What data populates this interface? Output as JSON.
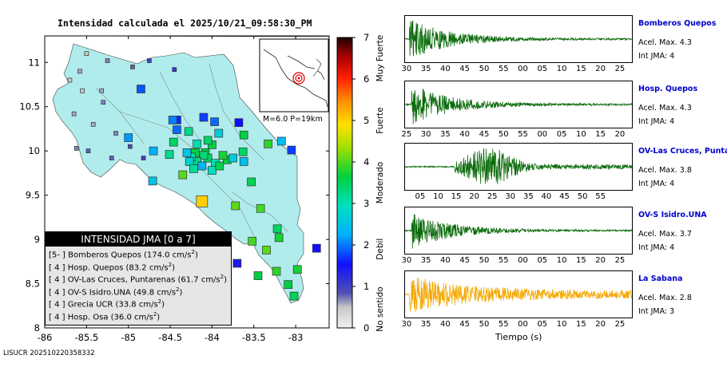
{
  "header": {
    "title": "Intensidad calculada el 2025/10/21_09:58:30_PM"
  },
  "footer": {
    "text": "LISUCR 202510220358332"
  },
  "map": {
    "x_ticks": [
      "-86",
      "-85.5",
      "-85",
      "-84.5",
      "-84",
      "-83.5",
      "-83"
    ],
    "y_ticks": [
      "11",
      "10.5",
      "10",
      "9.5",
      "9",
      "8.5",
      "8"
    ],
    "inset_label": "M=6.0 P=19km",
    "land_color": "#b0ecec",
    "sea_color": "#ffffff"
  },
  "colorbar": {
    "ticks": [
      "0",
      "1",
      "2",
      "3",
      "4",
      "5",
      "6",
      "7"
    ],
    "labels": [
      "No sentido",
      "Debil",
      "Moderado",
      "Fuerte",
      "Muy Fuerte"
    ]
  },
  "legend": {
    "title": "INTENSIDAD JMA [0 a 7]",
    "rows": [
      {
        "level": "[5- ]",
        "station": "Bomberos Quepos",
        "value": "(174.0 cm/s",
        "unit": "2",
        "close": ")"
      },
      {
        "level": "[ 4 ]",
        "station": "Hosp. Quepos",
        "value": "(83.2 cm/s",
        "unit": "2",
        "close": ")"
      },
      {
        "level": "[ 4 ]",
        "station": "OV-Las Cruces, Puntarenas",
        "value": "(61.7 cm/s",
        "unit": "2",
        "close": ")"
      },
      {
        "level": "[ 4 ]",
        "station": "OV-S Isidro.UNA",
        "value": "(49.8 cm/s",
        "unit": "2",
        "close": ")"
      },
      {
        "level": "[ 4 ]",
        "station": "Grecia UCR",
        "value": "(33.8 cm/s",
        "unit": "2",
        "close": ")"
      },
      {
        "level": "[ 4 ]",
        "station": "Hosp. Osa",
        "value": "(36.0 cm/s",
        "unit": "2",
        "close": ")"
      }
    ]
  },
  "traces": {
    "x_label": "Tiempo (s)",
    "stations": [
      {
        "name": "Bomberos Quepos",
        "acc": "Acel. Max. 4.3",
        "int": "Int JMA: 4",
        "color": "#0a6b0a",
        "ticks": [
          "30",
          "35",
          "40",
          "45",
          "50",
          "55",
          "00",
          "05",
          "10",
          "15",
          "20",
          "25"
        ],
        "onset": 0.02,
        "amp": 1.0
      },
      {
        "name": "Hosp. Quepos",
        "acc": "Acel. Max. 4.3",
        "int": "Int JMA: 4",
        "color": "#0a6b0a",
        "ticks": [
          "25",
          "30",
          "35",
          "40",
          "45",
          "50",
          "55",
          "00",
          "05",
          "10",
          "15",
          "20"
        ],
        "onset": 0.03,
        "amp": 1.0
      },
      {
        "name": "OV-Las Cruces, Puntar",
        "acc": "Acel. Max. 3.8",
        "int": "Int JMA: 4",
        "color": "#0a6b0a",
        "ticks": [
          "05",
          "10",
          "15",
          "20",
          "25",
          "30",
          "35",
          "40",
          "45",
          "50",
          "55"
        ],
        "onset": 0.22,
        "amp": 0.9
      },
      {
        "name": "OV-S Isidro.UNA",
        "acc": "Acel. Max. 3.7",
        "int": "Int JMA: 4",
        "color": "#0a6b0a",
        "ticks": [
          "30",
          "35",
          "40",
          "45",
          "50",
          "55",
          "00",
          "05",
          "10",
          "15",
          "20",
          "25"
        ],
        "onset": 0.03,
        "amp": 0.9
      },
      {
        "name": "La Sabana",
        "acc": "Acel. Max. 2.8",
        "int": "Int JMA: 3",
        "color": "#f5a800",
        "ticks": [
          "30",
          "35",
          "40",
          "45",
          "50",
          "55",
          "00",
          "05",
          "10",
          "15",
          "20",
          "25"
        ],
        "onset": 0.02,
        "amp": 0.95
      }
    ]
  },
  "chart_data": {
    "type": "scatter",
    "title": "Intensidad calculada el 2025/10/21_09:58:30_PM",
    "xlim": [
      -86,
      -82.6
    ],
    "ylim": [
      8,
      11.3
    ],
    "color_scale": {
      "min": 0,
      "max": 7,
      "labels": [
        "No sentido",
        "Debil",
        "Moderado",
        "Fuerte",
        "Muy Fuerte"
      ]
    },
    "stations": [
      {
        "lon": -84.12,
        "lat": 9.43,
        "intensity": 5.0
      },
      {
        "lon": -84.35,
        "lat": 9.73,
        "intensity": 4.0
      },
      {
        "lon": -83.72,
        "lat": 9.38,
        "intensity": 4.0
      },
      {
        "lon": -83.35,
        "lat": 8.88,
        "intensity": 4.0
      },
      {
        "lon": -84.08,
        "lat": 9.98,
        "intensity": 3.6
      },
      {
        "lon": -84.2,
        "lat": 9.98,
        "intensity": 3.6
      },
      {
        "lon": -84.05,
        "lat": 9.92,
        "intensity": 3.4
      },
      {
        "lon": -83.96,
        "lat": 9.86,
        "intensity": 3.0
      },
      {
        "lon": -84.0,
        "lat": 9.78,
        "intensity": 2.9
      },
      {
        "lon": -84.1,
        "lat": 9.95,
        "intensity": 3.3
      },
      {
        "lon": -84.18,
        "lat": 9.88,
        "intensity": 3.2
      },
      {
        "lon": -84.25,
        "lat": 9.93,
        "intensity": 3.0
      },
      {
        "lon": -84.3,
        "lat": 9.98,
        "intensity": 2.5
      },
      {
        "lon": -84.27,
        "lat": 9.88,
        "intensity": 2.7
      },
      {
        "lon": -84.12,
        "lat": 9.83,
        "intensity": 2.3
      },
      {
        "lon": -84.22,
        "lat": 9.8,
        "intensity": 3.1
      },
      {
        "lon": -83.91,
        "lat": 9.83,
        "intensity": 3.5
      },
      {
        "lon": -83.82,
        "lat": 9.9,
        "intensity": 3.6
      },
      {
        "lon": -83.75,
        "lat": 9.92,
        "intensity": 2.6
      },
      {
        "lon": -83.87,
        "lat": 9.95,
        "intensity": 3.7
      },
      {
        "lon": -84.0,
        "lat": 10.07,
        "intensity": 3.6
      },
      {
        "lon": -84.05,
        "lat": 10.12,
        "intensity": 3.4
      },
      {
        "lon": -84.18,
        "lat": 10.08,
        "intensity": 3.0
      },
      {
        "lon": -83.92,
        "lat": 10.2,
        "intensity": 2.6
      },
      {
        "lon": -84.28,
        "lat": 10.22,
        "intensity": 3.2
      },
      {
        "lon": -84.42,
        "lat": 10.35,
        "intensity": 1.6
      },
      {
        "lon": -84.42,
        "lat": 10.24,
        "intensity": 1.9
      },
      {
        "lon": -84.1,
        "lat": 10.38,
        "intensity": 1.7
      },
      {
        "lon": -83.97,
        "lat": 10.33,
        "intensity": 1.9
      },
      {
        "lon": -83.68,
        "lat": 10.32,
        "intensity": 1.5
      },
      {
        "lon": -83.62,
        "lat": 10.18,
        "intensity": 3.6
      },
      {
        "lon": -83.33,
        "lat": 10.08,
        "intensity": 3.8
      },
      {
        "lon": -83.05,
        "lat": 10.01,
        "intensity": 1.7
      },
      {
        "lon": -83.62,
        "lat": 9.88,
        "intensity": 2.4
      },
      {
        "lon": -83.63,
        "lat": 9.99,
        "intensity": 3.4
      },
      {
        "lon": -84.46,
        "lat": 10.1,
        "intensity": 3.4
      },
      {
        "lon": -84.51,
        "lat": 9.96,
        "intensity": 3.2
      },
      {
        "lon": -84.7,
        "lat": 10.0,
        "intensity": 2.2
      },
      {
        "lon": -84.71,
        "lat": 9.66,
        "intensity": 2.5
      },
      {
        "lon": -84.85,
        "lat": 10.7,
        "intensity": 1.8
      },
      {
        "lon": -84.47,
        "lat": 10.35,
        "intensity": 2.0
      },
      {
        "lon": -83.42,
        "lat": 9.35,
        "intensity": 3.9
      },
      {
        "lon": -83.52,
        "lat": 8.98,
        "intensity": 3.9
      },
      {
        "lon": -83.23,
        "lat": 8.64,
        "intensity": 3.8
      },
      {
        "lon": -83.09,
        "lat": 8.49,
        "intensity": 3.6
      },
      {
        "lon": -82.98,
        "lat": 8.66,
        "intensity": 3.7
      },
      {
        "lon": -83.02,
        "lat": 8.36,
        "intensity": 3.5
      },
      {
        "lon": -83.45,
        "lat": 8.59,
        "intensity": 3.6
      },
      {
        "lon": -83.2,
        "lat": 9.02,
        "intensity": 3.7
      },
      {
        "lon": -83.22,
        "lat": 9.12,
        "intensity": 3.4
      },
      {
        "lon": -83.53,
        "lat": 9.65,
        "intensity": 3.5
      },
      {
        "lon": -83.17,
        "lat": 10.11,
        "intensity": 2.4
      },
      {
        "lon": -85.32,
        "lat": 10.68,
        "intensity": 0.6
      },
      {
        "lon": -85.55,
        "lat": 10.68,
        "intensity": 0.5
      },
      {
        "lon": -85.65,
        "lat": 10.42,
        "intensity": 0.6
      },
      {
        "lon": -85.42,
        "lat": 10.3,
        "intensity": 0.6
      },
      {
        "lon": -85.15,
        "lat": 10.2,
        "intensity": 0.7
      },
      {
        "lon": -85.62,
        "lat": 10.03,
        "intensity": 0.7
      },
      {
        "lon": -85.48,
        "lat": 10.0,
        "intensity": 0.8
      },
      {
        "lon": -85.2,
        "lat": 9.92,
        "intensity": 0.8
      },
      {
        "lon": -85.0,
        "lat": 10.15,
        "intensity": 2.1
      },
      {
        "lon": -84.98,
        "lat": 10.05,
        "intensity": 0.9
      },
      {
        "lon": -84.82,
        "lat": 9.92,
        "intensity": 1.0
      },
      {
        "lon": -85.25,
        "lat": 11.02,
        "intensity": 0.7
      },
      {
        "lon": -84.95,
        "lat": 10.95,
        "intensity": 0.8
      },
      {
        "lon": -84.75,
        "lat": 11.02,
        "intensity": 1.0
      },
      {
        "lon": -84.45,
        "lat": 10.92,
        "intensity": 1.1
      },
      {
        "lon": -85.5,
        "lat": 11.1,
        "intensity": 0.5
      },
      {
        "lon": -85.7,
        "lat": 10.8,
        "intensity": 0.5
      },
      {
        "lon": -85.58,
        "lat": 10.9,
        "intensity": 0.6
      },
      {
        "lon": -85.3,
        "lat": 10.55,
        "intensity": 0.7
      },
      {
        "lon": -82.75,
        "lat": 8.9,
        "intensity": 1.5
      },
      {
        "lon": -83.7,
        "lat": 8.73,
        "intensity": 1.4
      }
    ]
  }
}
